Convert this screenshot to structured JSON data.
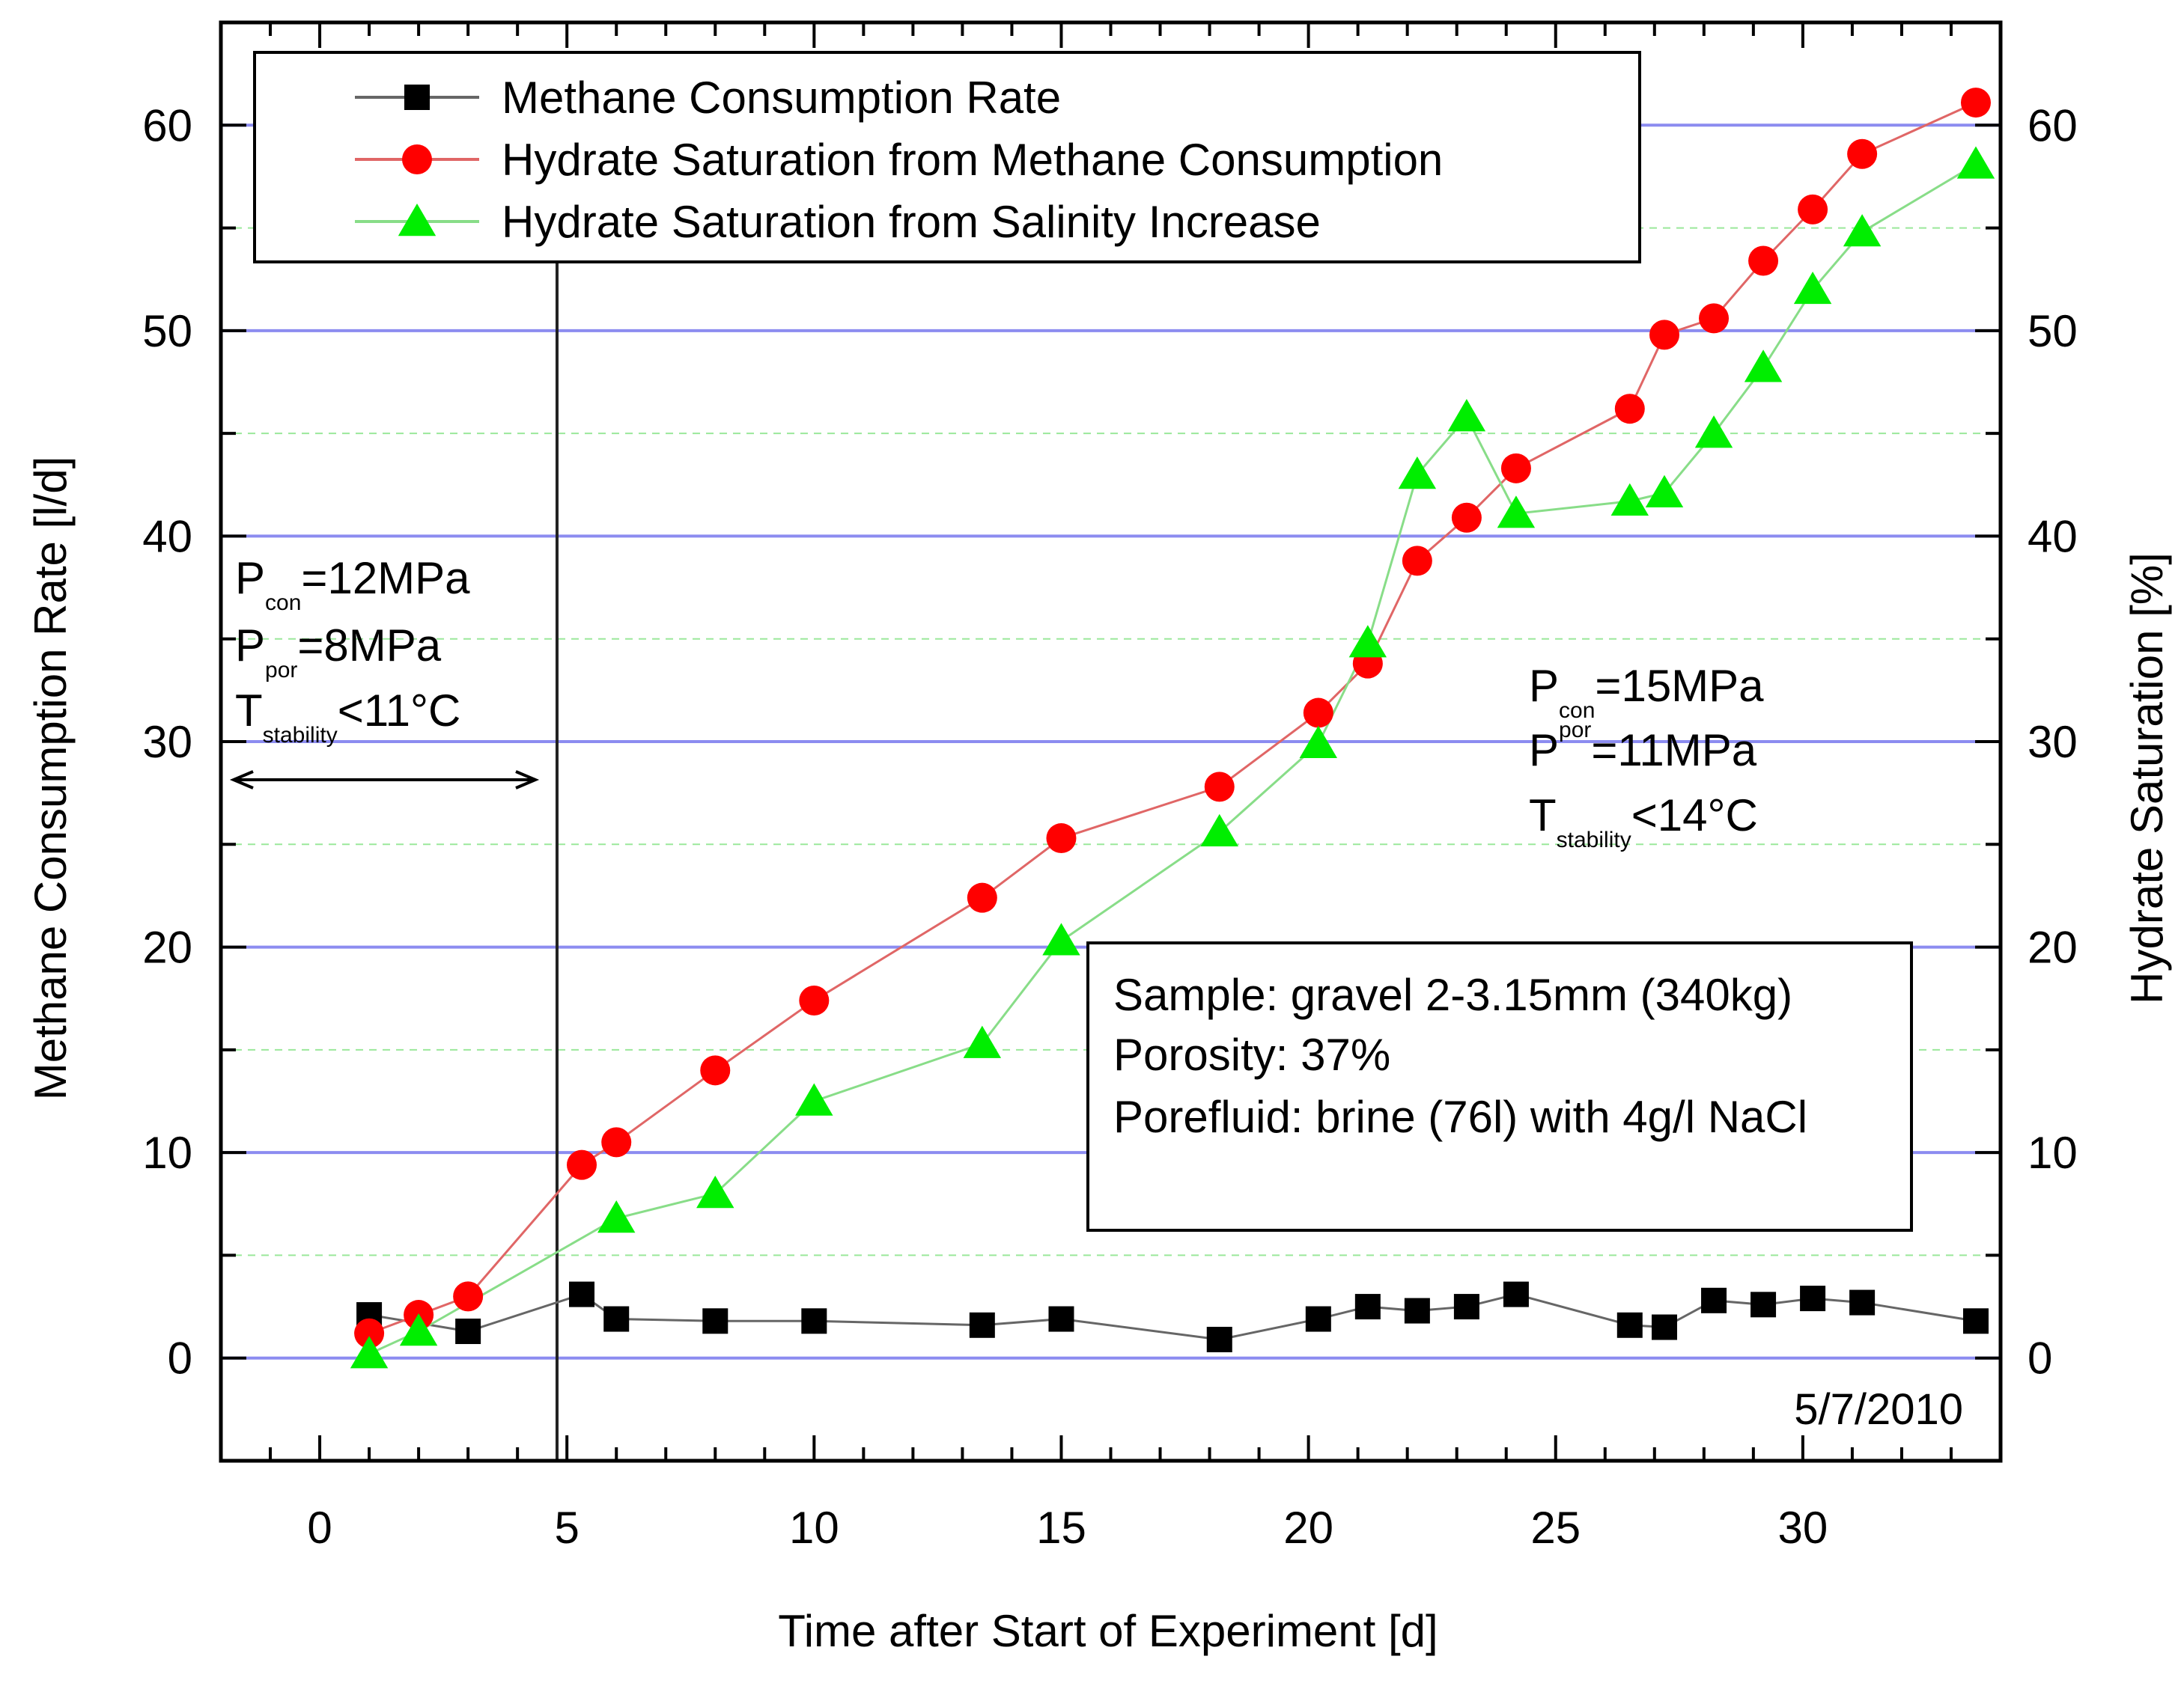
{
  "chart_data": {
    "type": "line",
    "xlabel": "Time after Start of Experiment [d]",
    "ylabel_left": "Methane Consumption Rate [l/d]",
    "ylabel_right": "Hydrate Saturation [%]",
    "xlim": [
      -2,
      34
    ],
    "ylim": [
      -5,
      65
    ],
    "x_ticks": [
      0,
      5,
      10,
      15,
      20,
      25,
      30
    ],
    "y_ticks": [
      0,
      10,
      20,
      30,
      40,
      50,
      60
    ],
    "grid": {
      "major_horizontal": true,
      "major_color": "#8c8cf0",
      "minor_color": "#9be89b"
    },
    "legend_position": "top",
    "event_line_x": 4.8,
    "series": [
      {
        "name": "Methane Consumption Rate",
        "marker": "square",
        "marker_color": "#000000",
        "line_color": "#666666",
        "x": [
          1,
          3,
          5.3,
          6,
          8,
          10,
          13.4,
          15,
          18.2,
          20.2,
          21.2,
          22.2,
          23.2,
          24.2,
          26.5,
          27.2,
          28.2,
          29.2,
          30.2,
          31.2,
          33.5
        ],
        "y": [
          2.1,
          1.3,
          3.1,
          1.9,
          1.8,
          1.8,
          1.6,
          1.9,
          0.9,
          1.9,
          2.5,
          2.3,
          2.5,
          3.1,
          1.6,
          1.5,
          2.8,
          2.6,
          2.9,
          2.7,
          1.8
        ]
      },
      {
        "name": "Hydrate Saturation from Methane Consumption",
        "marker": "circle",
        "marker_color": "#ff0000",
        "line_color": "#e06666",
        "x": [
          1,
          2,
          3,
          5.3,
          6,
          8,
          10,
          13.4,
          15,
          18.2,
          20.2,
          21.2,
          22.2,
          23.2,
          24.2,
          26.5,
          27.2,
          28.2,
          29.2,
          30.2,
          31.2,
          33.5
        ],
        "y": [
          1.2,
          2.1,
          3.0,
          9.4,
          10.5,
          14.0,
          17.4,
          22.4,
          25.3,
          27.8,
          31.4,
          33.8,
          38.8,
          40.9,
          43.3,
          46.2,
          49.8,
          50.6,
          53.4,
          55.9,
          58.6,
          61.1
        ]
      },
      {
        "name": "Hydrate Saturation from Salinity Increase",
        "marker": "triangle",
        "marker_color": "#00ee00",
        "line_color": "#88dd88",
        "x": [
          1,
          2,
          6,
          8,
          10,
          13.4,
          15,
          18.2,
          20.2,
          21.2,
          22.2,
          23.2,
          24.2,
          26.5,
          27.2,
          28.2,
          29.2,
          30.2,
          31.2,
          33.5
        ],
        "y": [
          0.2,
          1.3,
          6.8,
          8.0,
          12.5,
          15.3,
          20.3,
          25.6,
          29.9,
          34.8,
          43.0,
          45.8,
          41.1,
          41.7,
          42.1,
          45.0,
          48.2,
          52.0,
          54.8,
          58.1
        ]
      }
    ],
    "annotations": {
      "left": {
        "p_con": "P",
        "p_con_sub": "con",
        "p_con_rest": "=12MPa",
        "p_por": "P",
        "p_por_sub": "por",
        "p_por_rest": "=8MPa",
        "t_stab": "T",
        "t_stab_sub": "stability",
        "t_stab_rest": "<11°C"
      },
      "right": {
        "p_con": "P",
        "p_con_sub": "con",
        "p_con_rest": "=15MPa",
        "p_por": "P",
        "p_por_sub": "por",
        "p_por_rest": "=11MPa",
        "t_stab": "T",
        "t_stab_sub": "stability",
        "t_stab_rest": "<14°C"
      },
      "sample_box": [
        "Sample: gravel 2-3.15mm (340kg)",
        "Porosity: 37%",
        "Porefluid: brine (76l) with 4g/l NaCl"
      ],
      "date": "5/7/2010"
    }
  }
}
